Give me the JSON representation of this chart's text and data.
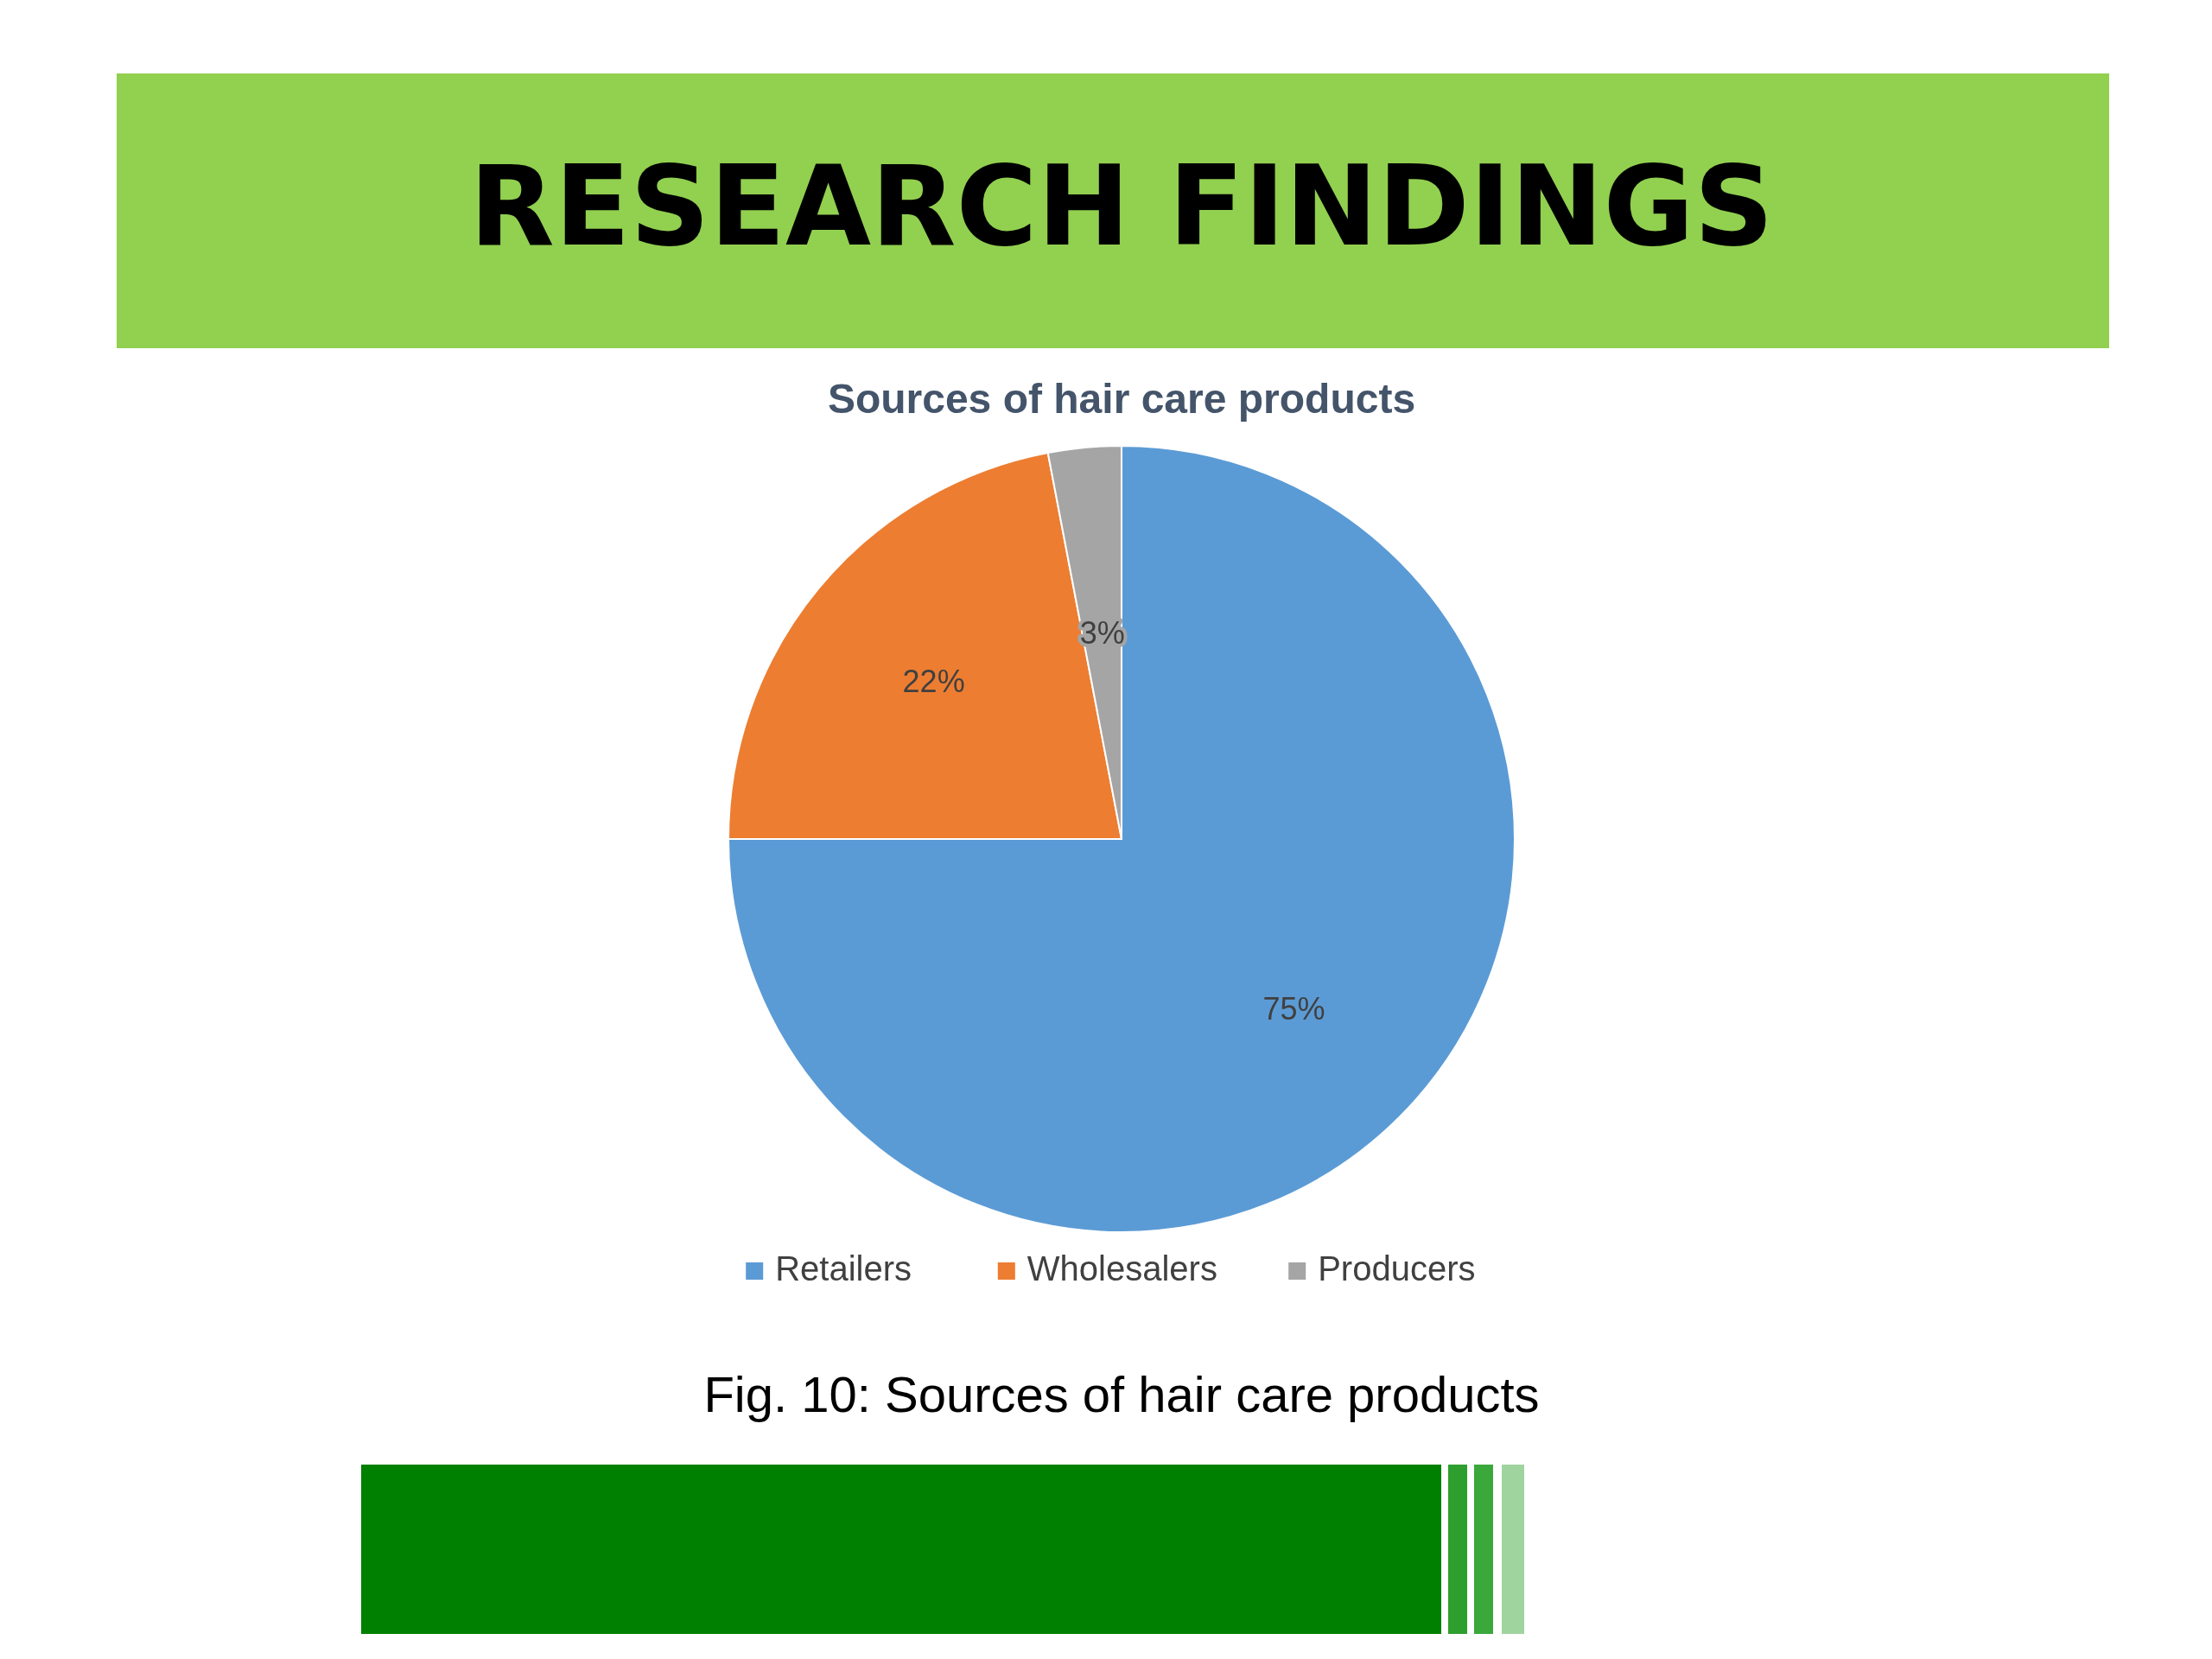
{
  "chart_data": {
    "type": "pie",
    "title": "RESEARCH FINDINGS",
    "subtitle": "Sources of hair care products",
    "categories": [
      "Retailers",
      "Wholesalers",
      "Producers"
    ],
    "values": [
      75,
      22,
      3
    ],
    "value_labels": [
      "75%",
      "22%",
      "3%"
    ],
    "colors": [
      "#5b9bd5",
      "#ed7d31",
      "#a5a5a5"
    ],
    "legend": "bottom",
    "annotations": [
      "Fig. 10: Sources of hair care products"
    ]
  }
}
